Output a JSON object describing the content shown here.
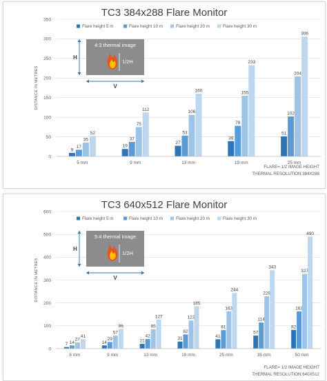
{
  "colors": [
    "#2e75b6",
    "#5b9bd5",
    "#9dc3e6",
    "#bdd7ee"
  ],
  "chart_data": [
    {
      "type": "bar",
      "title": "TC3 384x288 Flare Monitor",
      "ylabel": "DISTANCE IN METRES",
      "ylim": [
        0,
        350
      ],
      "yticks": [
        0,
        50,
        100,
        150,
        200,
        250,
        300,
        350
      ],
      "grid": true,
      "legend_position": "top",
      "categories": [
        "5 mm",
        "9 mm",
        "13 mm",
        "19 mm",
        "25 mm"
      ],
      "series": [
        {
          "name": "Flare height 5 m",
          "values": [
            9,
            19,
            27,
            39,
            51
          ]
        },
        {
          "name": "Flare height 10 m",
          "values": [
            17,
            37,
            53,
            78,
            102
          ]
        },
        {
          "name": "Flare height 20 m",
          "values": [
            35,
            75,
            106,
            155,
            204
          ]
        },
        {
          "name": "Flare height 30 m",
          "values": [
            52,
            112,
            160,
            233,
            306
          ]
        }
      ],
      "inset": {
        "caption": "4:3 thermal image",
        "h": "H",
        "half": "1/2H",
        "v": "V"
      },
      "footnotes": [
        "FLARE= 1/2 IMAGE HEIGHT",
        "THERMAL RESOLUTION:384X288"
      ]
    },
    {
      "type": "bar",
      "title": "TC3 640x512 Flare Monitor",
      "ylabel": "DISTANCE IN METRES",
      "ylim": [
        0,
        600
      ],
      "yticks": [
        0,
        100,
        200,
        300,
        400,
        500,
        600
      ],
      "grid": true,
      "legend_position": "top",
      "categories": [
        "5 mm",
        "9 mm",
        "13 mm",
        "19 mm",
        "25 mm",
        "35 mm",
        "50 mm"
      ],
      "series": [
        {
          "name": "Flare height 5 m",
          "values": [
            7,
            14,
            21,
            31,
            41,
            57,
            82
          ]
        },
        {
          "name": "Flare height 10 m",
          "values": [
            14,
            29,
            42,
            62,
            81,
            114,
            163
          ]
        },
        {
          "name": "Flare height 20 m",
          "values": [
            27,
            57,
            85,
            123,
            163,
            229,
            327
          ]
        },
        {
          "name": "Flare height 30 m",
          "values": [
            41,
            86,
            127,
            185,
            244,
            343,
            490
          ]
        }
      ],
      "inset": {
        "caption": "5:4 thermal image",
        "h": "H",
        "half": "1/2H",
        "v": "V"
      },
      "footnotes": [
        "FLARE= 1/2 IMAGE HEIGHT",
        "THERMAL RESOLUTION:640X512"
      ]
    }
  ]
}
